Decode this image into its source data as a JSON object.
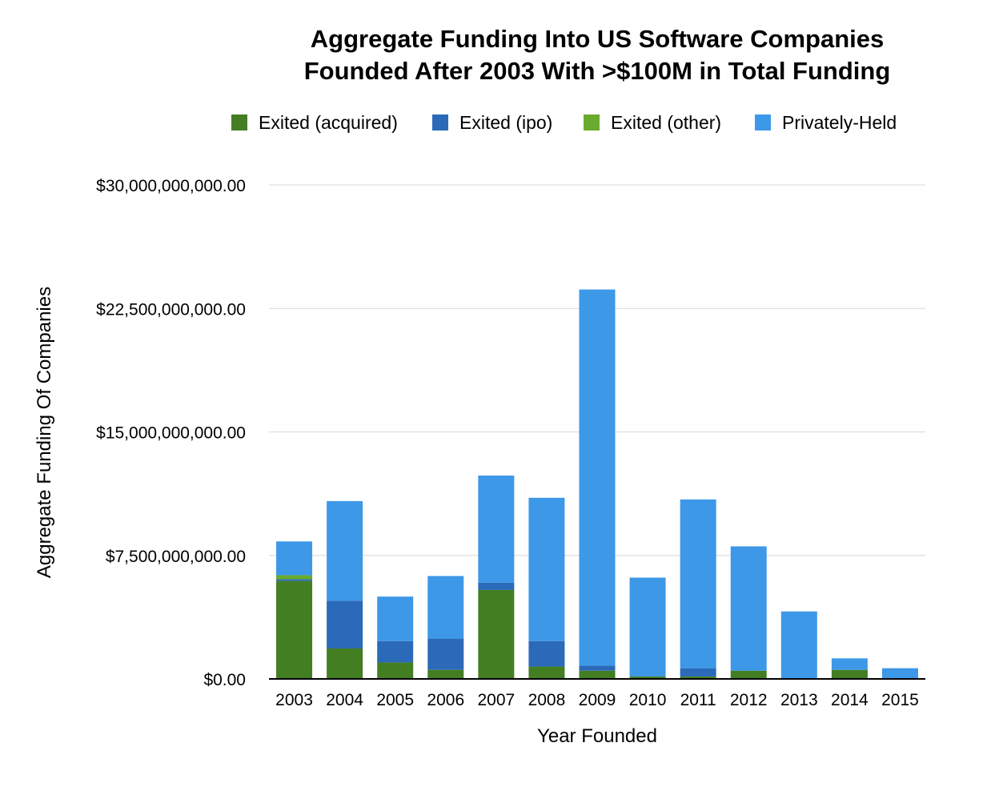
{
  "chart_data": {
    "type": "bar",
    "stacked": true,
    "title_lines": [
      "Aggregate Funding Into US Software Companies",
      "Founded After 2003 With >$100M in Total Funding"
    ],
    "xlabel": "Year Founded",
    "ylabel": "Aggregate Funding Of Companies",
    "categories": [
      "2003",
      "2004",
      "2005",
      "2006",
      "2007",
      "2008",
      "2009",
      "2010",
      "2011",
      "2012",
      "2013",
      "2014",
      "2015"
    ],
    "ylim": [
      0,
      30000000000
    ],
    "yticks": [
      0,
      7500000000,
      15000000000,
      22500000000,
      30000000000
    ],
    "ytick_labels": [
      "$0.00",
      "$7,500,000,000.00",
      "$15,000,000,000.00",
      "$22,500,000,000.00",
      "$30,000,000,000.00"
    ],
    "grid": true,
    "legend_position": "top",
    "series": [
      {
        "name": "Exited (acquired)",
        "color": "#437e23",
        "values": [
          5950000000,
          1850000000,
          1000000000,
          550000000,
          5400000000,
          750000000,
          500000000,
          150000000,
          150000000,
          500000000,
          0,
          550000000,
          0
        ]
      },
      {
        "name": "Exited (ipo)",
        "color": "#2b6ab8",
        "values": [
          100000000,
          2900000000,
          1300000000,
          1900000000,
          450000000,
          1550000000,
          300000000,
          0,
          500000000,
          0,
          0,
          0,
          0
        ]
      },
      {
        "name": "Exited (other)",
        "color": "#69ab2f",
        "values": [
          250000000,
          0,
          0,
          0,
          0,
          0,
          0,
          0,
          0,
          0,
          0,
          0,
          0
        ]
      },
      {
        "name": "Privately-Held",
        "color": "#3d98e8",
        "values": [
          2050000000,
          6050000000,
          2700000000,
          3800000000,
          6500000000,
          8700000000,
          22850000000,
          6000000000,
          10250000000,
          7550000000,
          4100000000,
          700000000,
          650000000
        ]
      }
    ]
  }
}
